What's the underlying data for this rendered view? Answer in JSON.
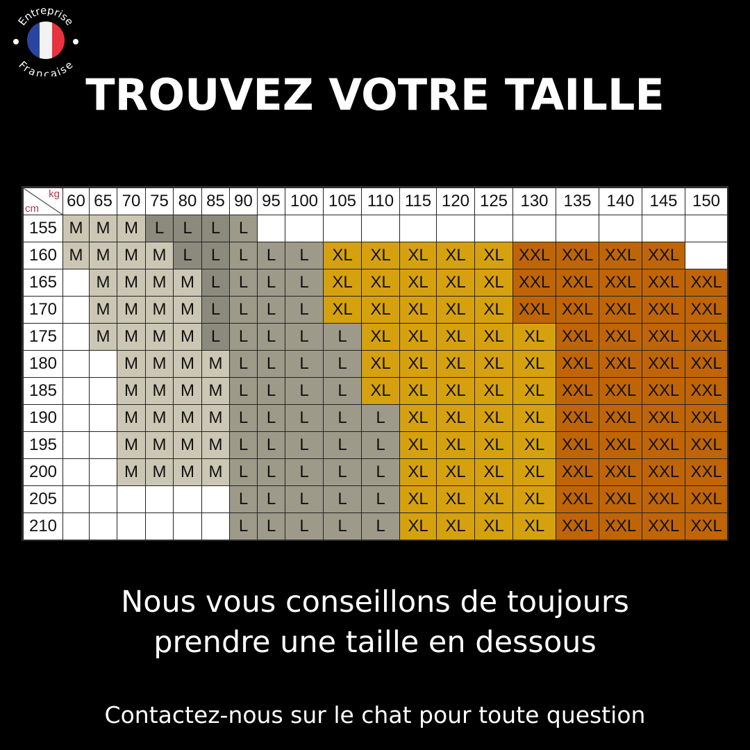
{
  "badge": {
    "top_text": "Entreprise",
    "bottom_text": "Française",
    "flag_colors": [
      "#2a45a0",
      "#f2f2f2",
      "#e8333f"
    ]
  },
  "title": "TROUVEZ VOTRE TAILLE",
  "chart_data": {
    "type": "table",
    "corner": {
      "col_unit": "kg",
      "row_unit": "cm"
    },
    "columns": [
      "60",
      "65",
      "70",
      "75",
      "80",
      "85",
      "90",
      "95",
      "100",
      "105",
      "110",
      "115",
      "120",
      "125",
      "130",
      "135",
      "140",
      "145",
      "150"
    ],
    "rows": [
      {
        "height": "155",
        "sizes": [
          "M",
          "M",
          "M",
          "L",
          "L",
          "L",
          "L",
          "",
          "",
          "",
          "",
          "",
          "",
          "",
          "",
          "",
          "",
          "",
          ""
        ]
      },
      {
        "height": "160",
        "sizes": [
          "M",
          "M",
          "M",
          "M",
          "L",
          "L",
          "L",
          "L",
          "L",
          "XL",
          "XL",
          "XL",
          "XL",
          "XL",
          "XXL",
          "XXL",
          "XXL",
          "XXL",
          ""
        ]
      },
      {
        "height": "165",
        "sizes": [
          "",
          "M",
          "M",
          "M",
          "M",
          "L",
          "L",
          "L",
          "L",
          "XL",
          "XL",
          "XL",
          "XL",
          "XL",
          "XXL",
          "XXL",
          "XXL",
          "XXL",
          "XXL"
        ]
      },
      {
        "height": "170",
        "sizes": [
          "",
          "M",
          "M",
          "M",
          "M",
          "L",
          "L",
          "L",
          "L",
          "XL",
          "XL",
          "XL",
          "XL",
          "XL",
          "XXL",
          "XXL",
          "XXL",
          "XXL",
          "XXL"
        ]
      },
      {
        "height": "175",
        "sizes": [
          "",
          "M",
          "M",
          "M",
          "M",
          "L",
          "L",
          "L",
          "L",
          "L",
          "XL",
          "XL",
          "XL",
          "XL",
          "XL",
          "XXL",
          "XXL",
          "XXL",
          "XXL"
        ]
      },
      {
        "height": "180",
        "sizes": [
          "",
          "",
          "M",
          "M",
          "M",
          "M",
          "L",
          "L",
          "L",
          "L",
          "XL",
          "XL",
          "XL",
          "XL",
          "XL",
          "XXL",
          "XXL",
          "XXL",
          "XXL"
        ]
      },
      {
        "height": "185",
        "sizes": [
          "",
          "",
          "M",
          "M",
          "M",
          "M",
          "L",
          "L",
          "L",
          "L",
          "XL",
          "XL",
          "XL",
          "XL",
          "XL",
          "XXL",
          "XXL",
          "XXL",
          "XXL"
        ]
      },
      {
        "height": "190",
        "sizes": [
          "",
          "",
          "M",
          "M",
          "M",
          "M",
          "L",
          "L",
          "L",
          "L",
          "L",
          "XL",
          "XL",
          "XL",
          "XL",
          "XXL",
          "XXL",
          "XXL",
          "XXL"
        ]
      },
      {
        "height": "195",
        "sizes": [
          "",
          "",
          "M",
          "M",
          "M",
          "M",
          "L",
          "L",
          "L",
          "L",
          "L",
          "XL",
          "XL",
          "XL",
          "XL",
          "XXL",
          "XXL",
          "XXL",
          "XXL"
        ]
      },
      {
        "height": "200",
        "sizes": [
          "",
          "",
          "M",
          "M",
          "M",
          "M",
          "L",
          "L",
          "L",
          "L",
          "L",
          "XL",
          "XL",
          "XL",
          "XL",
          "XXL",
          "XXL",
          "XXL",
          "XXL"
        ]
      },
      {
        "height": "205",
        "sizes": [
          "",
          "",
          "",
          "",
          "",
          "",
          "L",
          "L",
          "L",
          "L",
          "L",
          "XL",
          "XL",
          "XL",
          "XL",
          "XXL",
          "XXL",
          "XXL",
          "XXL"
        ]
      },
      {
        "height": "210",
        "sizes": [
          "",
          "",
          "",
          "",
          "",
          "",
          "L",
          "L",
          "L",
          "L",
          "L",
          "XL",
          "XL",
          "XL",
          "XL",
          "XXL",
          "XXL",
          "XXL",
          "XXL"
        ]
      }
    ],
    "size_colors": {
      "M": "#cbc7b4",
      "L": "#9d9a8a",
      "XL": "#d6a10f",
      "XXL": "#bf6508"
    }
  },
  "advice": [
    "Nous vous conseillons de toujours",
    "prendre une taille en dessous"
  ],
  "contact": "Contactez-nous sur le chat pour toute question"
}
